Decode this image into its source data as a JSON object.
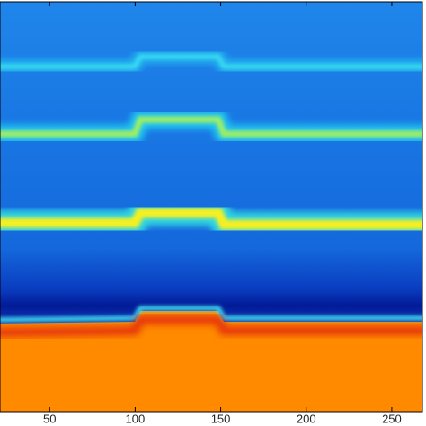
{
  "chart_data": {
    "type": "heatmap",
    "xlim": [
      21,
      270
    ],
    "xticks": [
      50,
      100,
      150,
      200,
      250
    ]
  }
}
